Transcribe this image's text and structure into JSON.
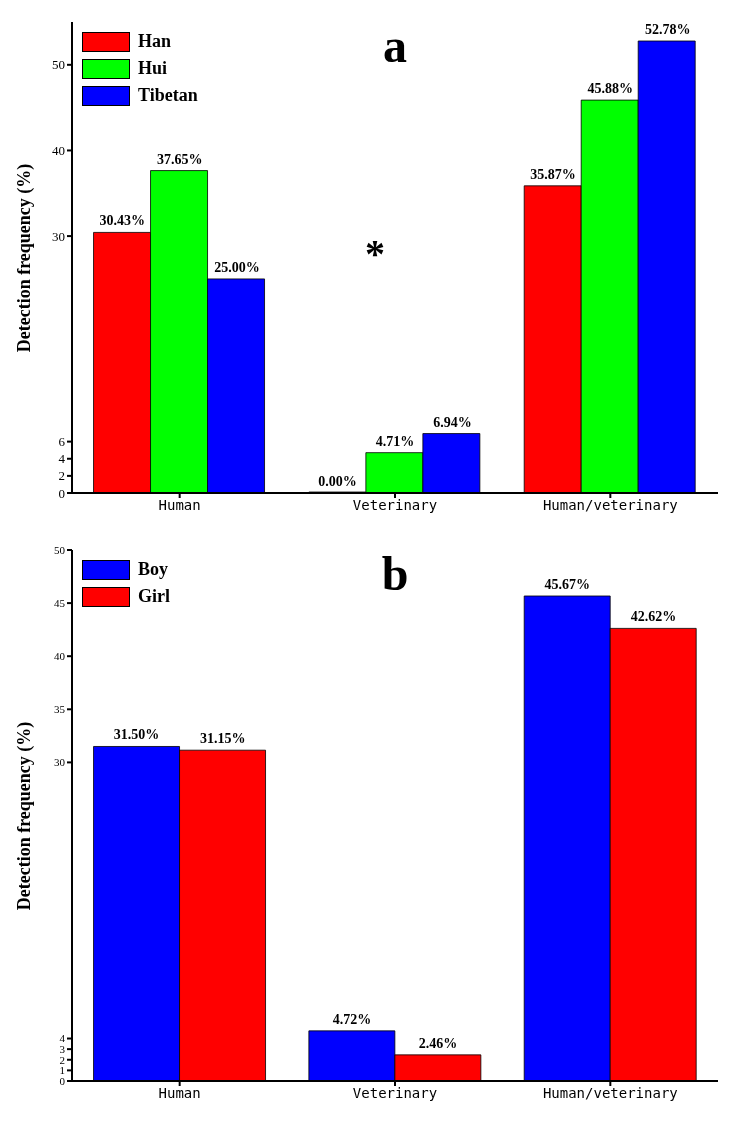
{
  "chart_data": [
    {
      "type": "bar",
      "title": "a",
      "ylabel": "Detection frequency (%)",
      "categories": [
        "Human",
        "Veterinary",
        "Human/veterinary"
      ],
      "series": [
        {
          "name": "Han",
          "color": "#ff0000",
          "values": [
            30.43,
            0,
            35.87
          ],
          "value_labels": [
            "30.43%",
            "0.00%",
            "35.87%"
          ]
        },
        {
          "name": "Hui",
          "color": "#00ff00",
          "values": [
            37.65,
            4.71,
            45.88
          ],
          "value_labels": [
            "37.65%",
            "4.71%",
            "45.88%"
          ]
        },
        {
          "name": "Tibetan",
          "color": "#0000ff",
          "values": [
            25.0,
            6.94,
            52.78
          ],
          "value_labels": [
            "25.00%",
            "6.94%",
            "52.78%"
          ]
        }
      ],
      "ylim": [
        0,
        55
      ],
      "yticks": [
        0,
        2,
        4,
        6,
        30,
        40,
        50
      ],
      "legend": "top left",
      "grid": false,
      "annotations": [
        "*"
      ]
    },
    {
      "type": "bar",
      "title": "b",
      "ylabel": "Detection frequency (%)",
      "categories": [
        "Human",
        "Veterinary",
        "Human/veterinary"
      ],
      "series": [
        {
          "name": "Boy",
          "color": "#0000ff",
          "values": [
            31.5,
            4.72,
            45.67
          ],
          "value_labels": [
            "31.50%",
            "4.72%",
            "45.67%"
          ]
        },
        {
          "name": "Girl",
          "color": "#ff0000",
          "values": [
            31.15,
            2.46,
            42.62
          ],
          "value_labels": [
            "31.15%",
            "2.46%",
            "42.62%"
          ]
        }
      ],
      "ylim": [
        0,
        50
      ],
      "yticks": [
        0,
        1,
        2,
        3,
        4,
        30,
        35,
        40,
        45,
        50
      ],
      "legend": "top left",
      "grid": false
    }
  ]
}
